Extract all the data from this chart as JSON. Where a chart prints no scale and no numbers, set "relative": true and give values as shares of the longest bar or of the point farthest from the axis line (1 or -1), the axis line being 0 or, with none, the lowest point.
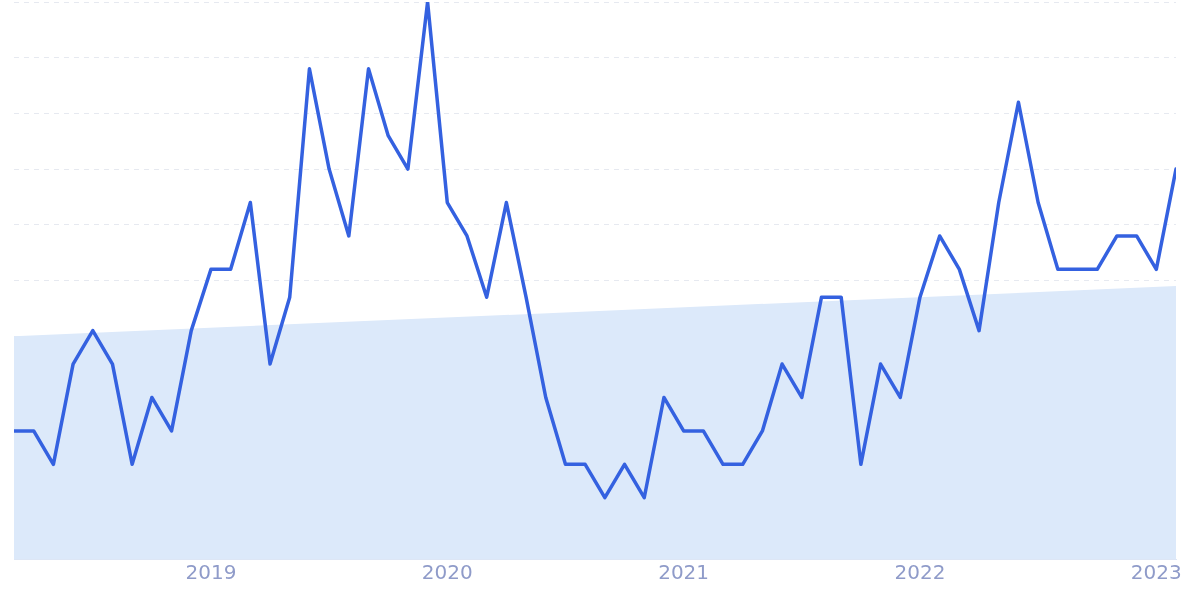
{
  "chart_data": {
    "type": "line",
    "relative": true,
    "grid": "y",
    "xlim": [
      "2018-03",
      "2023-02"
    ],
    "xticks": [
      "2019",
      "2020",
      "2021",
      "2022",
      "2023"
    ],
    "x": [
      "2018-03",
      "2018-04",
      "2018-05",
      "2018-06",
      "2018-07",
      "2018-08",
      "2018-09",
      "2018-10",
      "2018-11",
      "2018-12",
      "2019-01",
      "2019-02",
      "2019-03",
      "2019-04",
      "2019-05",
      "2019-06",
      "2019-07",
      "2019-08",
      "2019-09",
      "2019-10",
      "2019-11",
      "2019-12",
      "2020-01",
      "2020-02",
      "2020-03",
      "2020-04",
      "2020-05",
      "2020-06",
      "2020-07",
      "2020-08",
      "2020-09",
      "2020-10",
      "2020-11",
      "2020-12",
      "2021-01",
      "2021-02",
      "2021-03",
      "2021-04",
      "2021-05",
      "2021-06",
      "2021-07",
      "2021-08",
      "2021-09",
      "2021-10",
      "2021-11",
      "2021-12",
      "2022-01",
      "2022-02",
      "2022-03",
      "2022-04",
      "2022-05",
      "2022-06",
      "2022-07",
      "2022-08",
      "2022-09",
      "2022-10",
      "2022-11",
      "2022-12",
      "2023-01",
      "2023-02"
    ],
    "series": [
      {
        "type": "area",
        "color": "#dce9fa",
        "x": [
          "2018-03",
          "2023-02"
        ],
        "values": [
          0.4,
          0.49
        ]
      },
      {
        "color": "#3461e0",
        "values": [
          0.23,
          0.23,
          0.17,
          0.35,
          0.41,
          0.35,
          0.17,
          0.29,
          0.23,
          0.41,
          0.52,
          0.52,
          0.64,
          0.35,
          0.47,
          0.88,
          0.7,
          0.58,
          0.88,
          0.76,
          0.7,
          1,
          0.64,
          0.58,
          0.47,
          0.64,
          0.47,
          0.29,
          0.17,
          0.17,
          0.11,
          0.17,
          0.11,
          0.29,
          0.23,
          0.23,
          0.17,
          0.17,
          0.23,
          0.35,
          0.29,
          0.47,
          0.47,
          0.17,
          0.35,
          0.29,
          0.47,
          0.58,
          0.52,
          0.41,
          0.64,
          0.82,
          0.64,
          0.52,
          0.52,
          0.52,
          0.58,
          0.58,
          0.52,
          0.7
        ]
      }
    ]
  }
}
